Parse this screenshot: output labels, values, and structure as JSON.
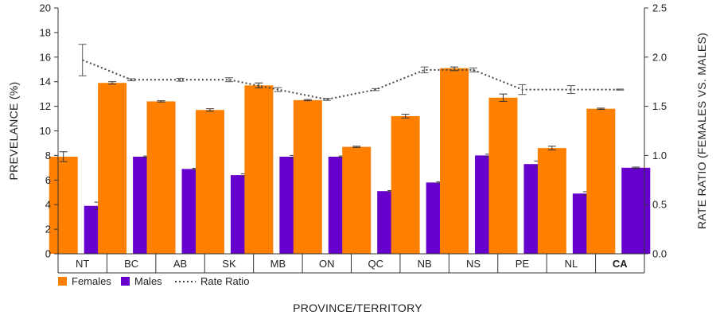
{
  "chart_data": {
    "type": "bar",
    "xlabel": "PROVINCE/TERRITORY",
    "ylabel": "PREVELANCE (%)",
    "y2label": "RATE RATIO (FEMALES VS. MALES)",
    "ylim": [
      0,
      20
    ],
    "y2lim": [
      0,
      2.5
    ],
    "yticks": [
      0,
      2,
      4,
      6,
      8,
      10,
      12,
      14,
      16,
      18,
      20
    ],
    "y2ticks": [
      "0.0",
      "0.5",
      "1.0",
      "1.5",
      "2.0",
      "2.5"
    ],
    "grid": false,
    "legend_position": "bottom-left",
    "categories": [
      "NT",
      "BC",
      "AB",
      "SK",
      "MB",
      "ON",
      "QC",
      "NB",
      "NS",
      "PE",
      "NL",
      "CA"
    ],
    "bold_categories": [
      "CA"
    ],
    "series": [
      {
        "name": "Females",
        "type": "bar",
        "axis": "left",
        "color": "#ff8000",
        "values": [
          7.9,
          13.9,
          12.4,
          11.7,
          13.7,
          12.5,
          8.7,
          11.2,
          15.1,
          12.7,
          8.6,
          11.8
        ],
        "error_low": [
          7.5,
          13.8,
          12.35,
          11.6,
          13.5,
          12.45,
          8.65,
          11.05,
          14.9,
          12.4,
          8.45,
          11.75
        ],
        "error_high": [
          8.3,
          14.0,
          12.45,
          11.8,
          13.9,
          12.55,
          8.75,
          11.35,
          15.2,
          13.0,
          8.75,
          11.85
        ]
      },
      {
        "name": "Males",
        "type": "bar",
        "axis": "left",
        "color": "#6600cc",
        "values": [
          3.9,
          7.9,
          6.9,
          6.4,
          7.9,
          7.9,
          5.1,
          5.8,
          8.0,
          7.3,
          4.9,
          7.0
        ],
        "error_low": [
          3.6,
          7.85,
          6.85,
          6.3,
          7.8,
          7.85,
          5.05,
          5.75,
          7.9,
          7.05,
          4.75,
          6.95
        ],
        "error_high": [
          4.2,
          7.95,
          6.95,
          6.5,
          8.0,
          7.95,
          5.15,
          5.85,
          8.1,
          7.55,
          5.05,
          7.05
        ]
      },
      {
        "name": "Rate Ratio",
        "type": "line",
        "axis": "right",
        "style": "dotted",
        "color": "#444444",
        "values": [
          1.97,
          1.77,
          1.77,
          1.77,
          1.67,
          1.57,
          1.67,
          1.87,
          1.87,
          1.67,
          1.67,
          1.67
        ],
        "error_low": [
          1.81,
          1.76,
          1.755,
          1.75,
          1.65,
          1.56,
          1.66,
          1.84,
          1.85,
          1.62,
          1.63,
          1.665
        ],
        "error_high": [
          2.13,
          1.78,
          1.785,
          1.79,
          1.69,
          1.58,
          1.68,
          1.9,
          1.89,
          1.72,
          1.71,
          1.675
        ]
      }
    ]
  }
}
